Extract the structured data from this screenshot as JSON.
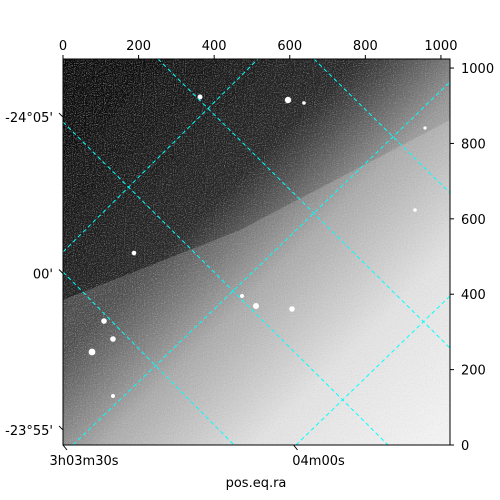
{
  "chart_data": {
    "type": "image",
    "description_free": true,
    "xlabel": "pos.eq.ra",
    "pixel_axes": {
      "top": {
        "range": [
          0,
          1024
        ],
        "ticks": [
          0,
          200,
          400,
          600,
          800,
          1000
        ],
        "labels": [
          "0",
          "200",
          "400",
          "600",
          "800",
          "1000"
        ]
      },
      "right": {
        "range": [
          0,
          1024
        ],
        "ticks": [
          0,
          200,
          400,
          600,
          800,
          1000
        ],
        "labels": [
          "0",
          "200",
          "400",
          "600",
          "800",
          "1000"
        ]
      }
    },
    "world_axes": {
      "bottom_ticks": [
        {
          "x_pix": 0,
          "label": "3h03m30s"
        },
        {
          "x_pix": 610,
          "label": "04m00s"
        }
      ],
      "left_ticks": [
        {
          "y_pix": 870,
          "label": "-24°05'"
        },
        {
          "y_pix": 455,
          "label": "00'"
        },
        {
          "y_pix": 40,
          "label": "-23°55'"
        }
      ]
    },
    "grid": {
      "color": "#00ffff",
      "style": "dashed",
      "shown": true
    },
    "colormap": "gray"
  },
  "colors": {
    "grid": "#00ffff",
    "frame": "#000000"
  }
}
